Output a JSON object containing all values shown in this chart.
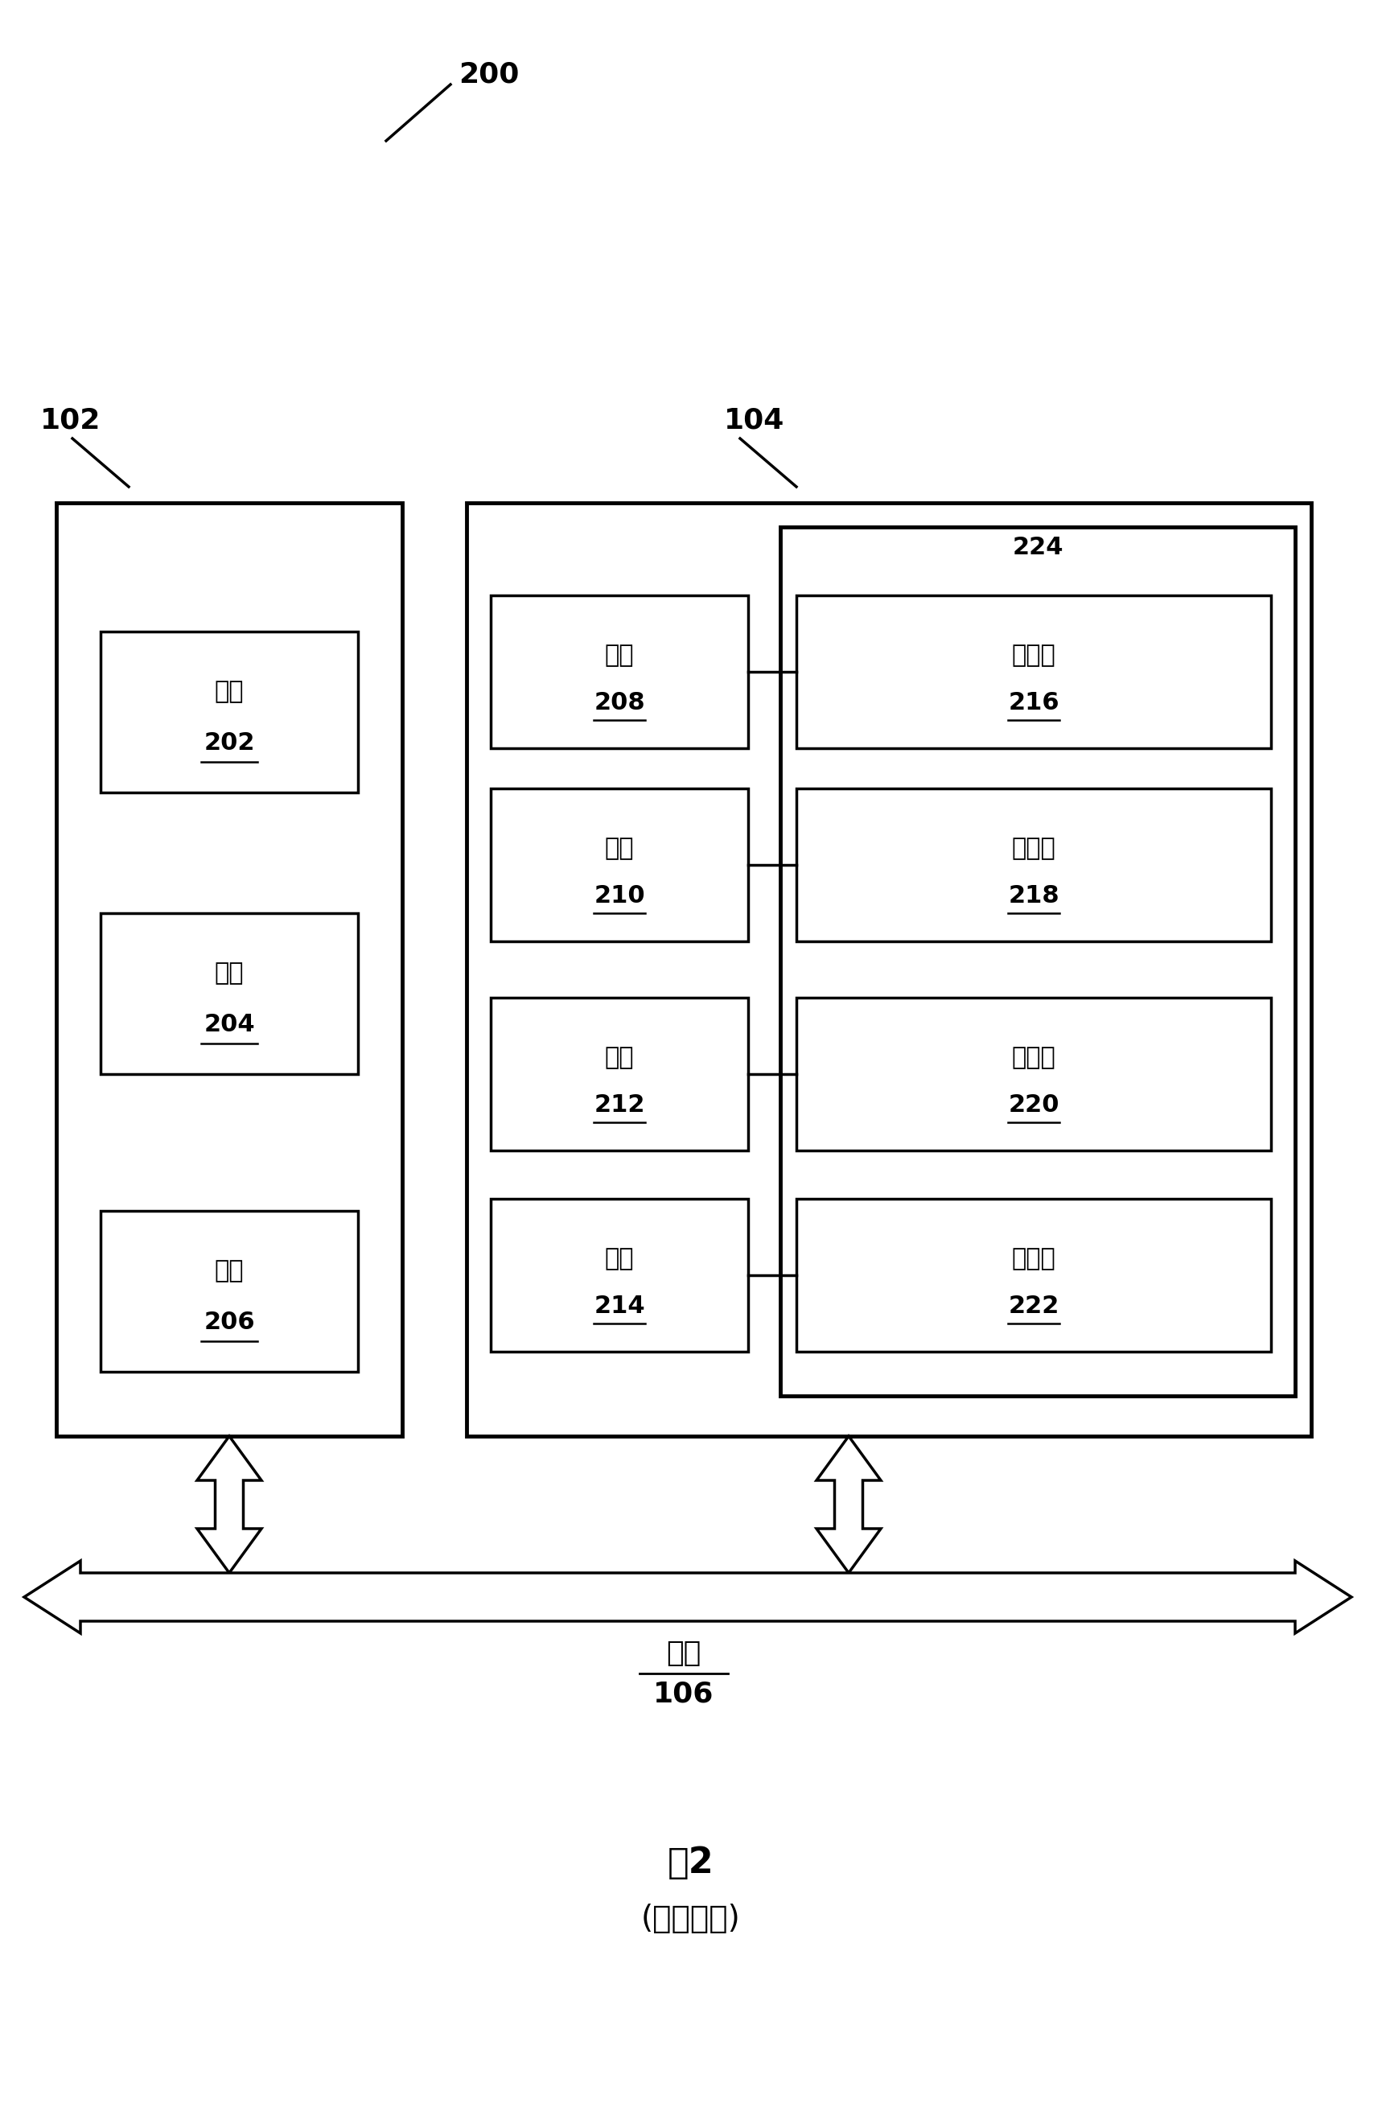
{
  "bg_color": "#ffffff",
  "title_fig2": "图2",
  "subtitle": "(现有技术)",
  "label_200": "200",
  "label_102": "102",
  "label_104": "104",
  "label_224": "224",
  "processes": [
    {
      "label": "进程",
      "num": "202"
    },
    {
      "label": "进程",
      "num": "204"
    },
    {
      "label": "进程",
      "num": "206"
    }
  ],
  "resources": [
    {
      "label": "资源",
      "num": "208"
    },
    {
      "label": "资源",
      "num": "210"
    },
    {
      "label": "资源",
      "num": "212"
    },
    {
      "label": "资源",
      "num": "214"
    }
  ],
  "semaphores": [
    {
      "label": "信号量",
      "num": "216"
    },
    {
      "label": "信号量",
      "num": "218"
    },
    {
      "label": "信号量",
      "num": "220"
    },
    {
      "label": "信号量",
      "num": "222"
    }
  ],
  "bus_label": "总线",
  "bus_num": "106"
}
